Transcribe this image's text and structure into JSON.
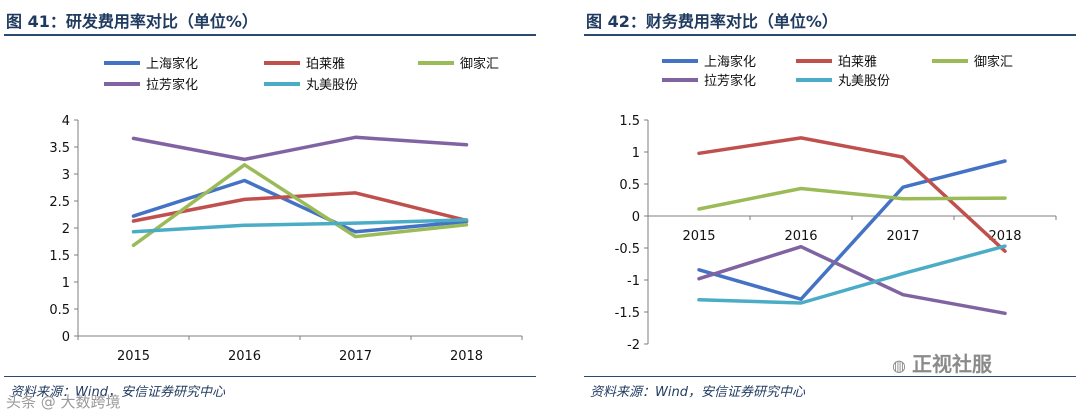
{
  "left": {
    "title": "图 41：研发费用率对比（单位%）",
    "source": "资料来源：Wind，安信证券研究中心",
    "legend_rows": [
      [
        "上海家化",
        "珀莱雅",
        "御家汇"
      ],
      [
        "拉芳家化",
        "丸美股份"
      ]
    ],
    "chart_data": {
      "type": "line",
      "title": "研发费用率对比（单位%）",
      "xlabel": "",
      "ylabel": "",
      "categories": [
        "2015",
        "2016",
        "2017",
        "2018"
      ],
      "ylim": [
        0,
        4
      ],
      "yticks": [
        "0",
        "0.5",
        "1",
        "1.5",
        "2",
        "2.5",
        "3",
        "3.5",
        "4"
      ],
      "grid": false,
      "series": [
        {
          "name": "上海家化",
          "color": "#4472c4",
          "values": [
            2.22,
            2.88,
            1.93,
            2.12
          ]
        },
        {
          "name": "珀莱雅",
          "color": "#c0504d",
          "values": [
            2.13,
            2.53,
            2.65,
            2.14
          ]
        },
        {
          "name": "御家汇",
          "color": "#9bbb59",
          "values": [
            1.68,
            3.17,
            1.84,
            2.06
          ]
        },
        {
          "name": "拉芳家化",
          "color": "#8064a2",
          "values": [
            3.66,
            3.27,
            3.68,
            3.54
          ]
        },
        {
          "name": "丸美股份",
          "color": "#4bacc6",
          "values": [
            1.93,
            2.05,
            2.09,
            2.15
          ]
        }
      ]
    }
  },
  "right": {
    "title": "图 42：财务费用率对比（单位%）",
    "source": "资料来源：Wind，安信证券研究中心",
    "legend_rows": [
      [
        "上海家化",
        "珀莱雅",
        "御家汇"
      ],
      [
        "拉芳家化",
        "丸美股份"
      ]
    ],
    "chart_data": {
      "type": "line",
      "title": "财务费用率对比（单位%）",
      "xlabel": "",
      "ylabel": "",
      "categories": [
        "2015",
        "2016",
        "2017",
        "2018"
      ],
      "ylim": [
        -2,
        1.5
      ],
      "yticks": [
        "-2",
        "-1.5",
        "-1",
        "-0.5",
        "0",
        "0.5",
        "1",
        "1.5"
      ],
      "grid": false,
      "series": [
        {
          "name": "上海家化",
          "color": "#4472c4",
          "values": [
            -0.84,
            -1.3,
            0.45,
            0.86
          ]
        },
        {
          "name": "珀莱雅",
          "color": "#c0504d",
          "values": [
            0.98,
            1.22,
            0.92,
            -0.55
          ]
        },
        {
          "name": "御家汇",
          "color": "#9bbb59",
          "values": [
            0.11,
            0.43,
            0.27,
            0.28
          ]
        },
        {
          "name": "拉芳家化",
          "color": "#8064a2",
          "values": [
            -0.98,
            -0.48,
            -1.23,
            -1.52
          ]
        },
        {
          "name": "丸美股份",
          "color": "#4bacc6",
          "values": [
            -1.31,
            -1.36,
            -0.9,
            -0.47
          ]
        }
      ]
    }
  },
  "watermarks": {
    "right_text": "正视社服",
    "left_text": "头条 @ 大数跨境"
  }
}
